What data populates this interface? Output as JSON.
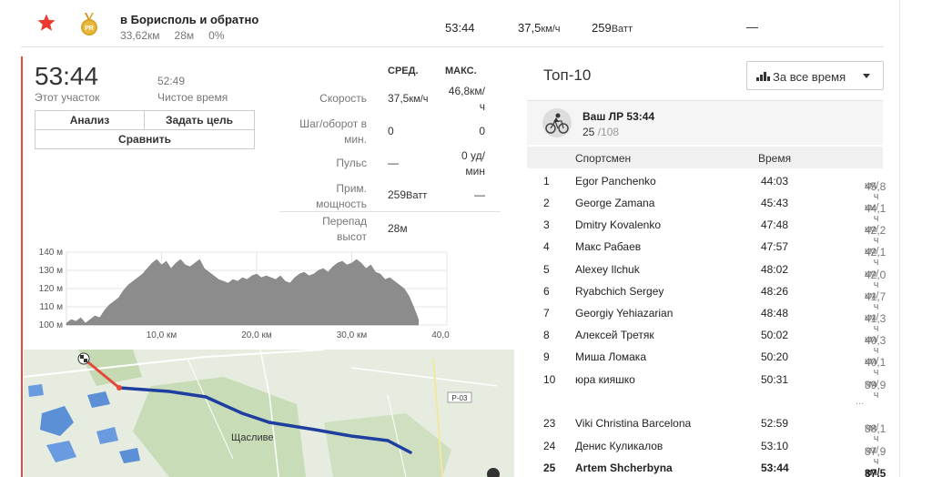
{
  "header": {
    "segment_name": "в Борисполь и обратно",
    "distance": "33,62км",
    "elevation": "28м",
    "grade": "0%",
    "time": "53:44",
    "speed_value": "37,5",
    "speed_unit": "км/ч",
    "power_value": "259",
    "power_unit": "Ватт",
    "extra": "—",
    "pr_badge": "PR"
  },
  "effort": {
    "time": "53:44",
    "time_label": "Этот участок",
    "moving_time": "52:49",
    "moving_label": "Чистое время",
    "buttons": {
      "analysis": "Анализ",
      "set_goal": "Задать цель",
      "compare": "Сравнить"
    }
  },
  "stats": {
    "col_avg": "СРЕД.",
    "col_max": "МАКС.",
    "rows": [
      {
        "label_1": "Скорость",
        "label_2": "",
        "avg": "37,5",
        "avg_unit": "км/ч",
        "max_1": "46,8км/",
        "max_2": "ч"
      },
      {
        "label_1": "Шаг/оборот в",
        "label_2": "мин.",
        "avg": "0",
        "avg_unit": "",
        "max_1": "0",
        "max_2": ""
      },
      {
        "label_1": "Пульс",
        "label_2": "",
        "avg": "—",
        "avg_unit": "",
        "max_1": "0 уд/",
        "max_2": "мин"
      },
      {
        "label_1": "Прим.",
        "label_2": "мощность",
        "avg": "259",
        "avg_unit": "Ватт",
        "max_1": "—",
        "max_2": ""
      },
      {
        "label_1": "Перепад",
        "label_2": "высот",
        "avg": "28м",
        "avg_unit": "",
        "max_1": "",
        "max_2": ""
      }
    ]
  },
  "top10": {
    "title": "Топ-10",
    "range": "За все время",
    "your_pr": "Ваш ЛР 53:44",
    "your_rank": "25",
    "your_rank_total": "/108",
    "col_athlete": "Спортсмен",
    "col_time": "Время",
    "ellipsis": "...",
    "rows": [
      {
        "rank": "1",
        "name": "Egor Panchenko",
        "time": "44:03",
        "speed": "45,8",
        "unit": "км/ч"
      },
      {
        "rank": "2",
        "name": "George Zamana",
        "time": "45:43",
        "speed": "44,1",
        "unit": "км/ч"
      },
      {
        "rank": "3",
        "name": "Dmitry Kovalenko",
        "time": "47:48",
        "speed": "42,2",
        "unit": "км/ч"
      },
      {
        "rank": "4",
        "name": "Макс Рабаев",
        "time": "47:57",
        "speed": "42,1",
        "unit": "км/ч"
      },
      {
        "rank": "5",
        "name": "Alexey Ilchuk",
        "time": "48:02",
        "speed": "42,0",
        "unit": "км/ч"
      },
      {
        "rank": "6",
        "name": "Ryabchich Sergey",
        "time": "48:26",
        "speed": "41,7",
        "unit": "км/ч"
      },
      {
        "rank": "7",
        "name": "Georgiy Yehiazarian",
        "time": "48:48",
        "speed": "41,3",
        "unit": "км/ч"
      },
      {
        "rank": "8",
        "name": "Алексей Третяк",
        "time": "50:02",
        "speed": "40,3",
        "unit": "км/ч"
      },
      {
        "rank": "9",
        "name": "Миша Ломака",
        "time": "50:20",
        "speed": "40,1",
        "unit": "км/ч"
      },
      {
        "rank": "10",
        "name": "юра кияшко",
        "time": "50:31",
        "speed": "39,9",
        "unit": "км/ч"
      }
    ],
    "nearby": [
      {
        "rank": "23",
        "name": "Viki Christina Barcelona",
        "time": "52:59",
        "speed": "38,1",
        "unit": "км/ч"
      },
      {
        "rank": "24",
        "name": "Денис Куликалов",
        "time": "53:10",
        "speed": "37,9",
        "unit": "км/ч"
      },
      {
        "rank": "25",
        "name": "Artem Shcherbyna",
        "time": "53:44",
        "speed": "37,5",
        "unit": "км/ч"
      }
    ]
  },
  "chart_data": {
    "type": "area",
    "xlabel": "",
    "ylabel": "",
    "x_ticks": [
      "10,0 км",
      "20,0 км",
      "30,0 км",
      "40,0 км"
    ],
    "y_ticks": [
      "100 м",
      "110 м",
      "120 м",
      "130 м",
      "140 м"
    ],
    "xlim": [
      0,
      40
    ],
    "ylim": [
      100,
      140
    ],
    "grid": true,
    "series": [
      {
        "x": [
          0,
          0.5,
          1,
          1.5,
          2,
          2.5,
          3,
          3.5,
          4,
          4.5,
          5,
          5.5,
          6,
          6.5,
          7,
          7.5,
          8,
          8.5,
          9,
          9.5,
          10,
          10.5,
          11,
          11.5,
          12,
          12.5,
          13,
          13.5,
          14,
          14.5,
          15,
          15.5,
          16,
          16.5,
          17,
          17.5,
          18,
          18.5,
          19,
          19.5,
          20,
          20.5,
          21,
          21.5,
          22,
          22.5,
          23,
          23.5,
          24,
          24.5,
          25,
          25.5,
          26,
          26.5,
          27,
          27.5,
          28,
          28.5,
          29,
          29.5,
          30,
          30.5,
          31,
          31.5,
          32,
          32.5,
          33,
          33.5,
          34,
          34.5,
          35,
          35.5,
          36,
          36.5,
          37
        ],
        "y": [
          101,
          103,
          102,
          104,
          101,
          103,
          105,
          104,
          108,
          111,
          113,
          115,
          119,
          122,
          124,
          126,
          128,
          131,
          134,
          136,
          133,
          135,
          131,
          134,
          136,
          133,
          132,
          134,
          136,
          131,
          129,
          127,
          125,
          124,
          123,
          125,
          124,
          126,
          125,
          127,
          128,
          126,
          127,
          126,
          125,
          127,
          124,
          123,
          126,
          128,
          129,
          127,
          128,
          130,
          131,
          129,
          132,
          134,
          135,
          133,
          134,
          136,
          134,
          131,
          133,
          129,
          128,
          125,
          126,
          124,
          122,
          120,
          116,
          110,
          103
        ]
      }
    ]
  },
  "map": {
    "town_label": "Щасливе",
    "road_label": "Р-03"
  },
  "colors": {
    "accent_red": "#e34a3c",
    "route_blue": "#1f3fa0",
    "star": "#e83a2f",
    "badge_gold": "#d9a528"
  }
}
